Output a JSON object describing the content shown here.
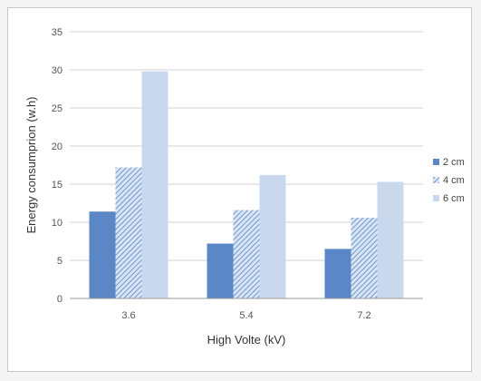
{
  "chart_data": {
    "type": "bar",
    "title": "",
    "xlabel": "High Volte (kV)",
    "ylabel": "Energy consumprion (w.h)",
    "categories": [
      "3.6",
      "5.4",
      "7.2"
    ],
    "ylim": [
      0,
      35
    ],
    "yticks": [
      0,
      5,
      10,
      15,
      20,
      25,
      30,
      35
    ],
    "grid": true,
    "legend_position": "right",
    "series": [
      {
        "name": "2 cm",
        "values": [
          11.4,
          7.2,
          6.5
        ],
        "color": "#5b87c6",
        "pattern": "solid"
      },
      {
        "name": "4 cm",
        "values": [
          17.2,
          11.6,
          10.6
        ],
        "color": "#8fb0dc",
        "pattern": "diagonal-hatch"
      },
      {
        "name": "6 cm",
        "values": [
          29.8,
          16.2,
          15.3
        ],
        "color": "#c9d8ec",
        "pattern": "solid-light"
      }
    ]
  }
}
